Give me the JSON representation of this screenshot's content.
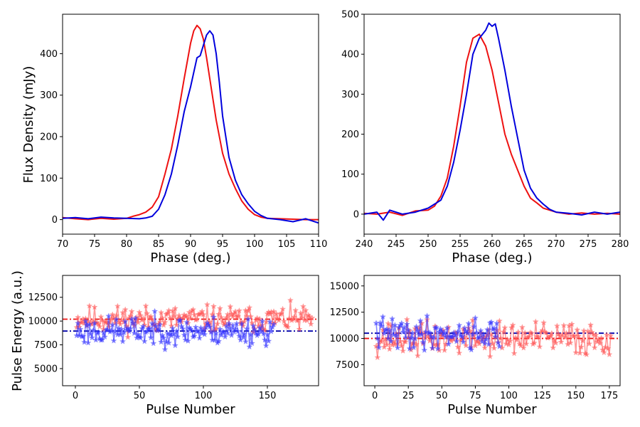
{
  "chart_data": [
    {
      "type": "line",
      "id": "profile-left",
      "xlabel": "Phase (deg.)",
      "ylabel": "Flux Density (mJy)",
      "xlim": [
        70,
        110
      ],
      "ylim": [
        -35,
        495
      ],
      "xticks": [
        70,
        75,
        80,
        85,
        90,
        95,
        100,
        105,
        110
      ],
      "yticks": [
        0,
        100,
        200,
        300,
        400
      ],
      "series": [
        {
          "name": "red",
          "color": "#ee1111",
          "x": [
            70,
            72,
            74,
            76,
            78,
            80,
            81,
            82,
            83,
            84,
            85,
            86,
            87,
            88,
            89,
            90,
            90.5,
            91,
            91.5,
            92,
            92.5,
            93,
            93.5,
            94,
            95,
            96,
            97,
            98,
            99,
            100,
            101,
            102,
            104,
            106,
            108,
            110
          ],
          "y": [
            5,
            2,
            0,
            3,
            1,
            3,
            8,
            12,
            18,
            30,
            55,
            110,
            170,
            250,
            340,
            425,
            455,
            468,
            460,
            435,
            390,
            340,
            290,
            240,
            160,
            110,
            75,
            45,
            25,
            12,
            6,
            3,
            2,
            1,
            0,
            0
          ]
        },
        {
          "name": "blue",
          "color": "#0000dd",
          "x": [
            70,
            72,
            74,
            76,
            78,
            80,
            82,
            83,
            84,
            85,
            86,
            87,
            88,
            89,
            90,
            91,
            91.5,
            92,
            92.5,
            93,
            93.5,
            94,
            94.5,
            95,
            96,
            97,
            98,
            99,
            100,
            101,
            102,
            104,
            106,
            108,
            110
          ],
          "y": [
            3,
            5,
            2,
            6,
            4,
            3,
            2,
            4,
            8,
            25,
            60,
            110,
            180,
            260,
            320,
            390,
            395,
            420,
            445,
            455,
            445,
            400,
            330,
            250,
            150,
            95,
            60,
            38,
            20,
            10,
            3,
            0,
            -5,
            2,
            -8
          ]
        }
      ]
    },
    {
      "type": "line",
      "id": "profile-right",
      "xlabel": "Phase (deg.)",
      "ylabel": "",
      "xlim": [
        240,
        280
      ],
      "ylim": [
        -50,
        500
      ],
      "xticks": [
        240,
        245,
        250,
        255,
        260,
        265,
        270,
        275,
        280
      ],
      "yticks": [
        0,
        100,
        200,
        300,
        400,
        500
      ],
      "series": [
        {
          "name": "red",
          "color": "#ee1111",
          "x": [
            240,
            242,
            244,
            246,
            248,
            250,
            251,
            252,
            253,
            254,
            255,
            256,
            257,
            258,
            259,
            260,
            261,
            262,
            263,
            264,
            265,
            266,
            267,
            268,
            270,
            272,
            274,
            276,
            278,
            280
          ],
          "y": [
            2,
            0,
            5,
            -3,
            8,
            10,
            20,
            45,
            90,
            170,
            270,
            380,
            440,
            450,
            420,
            360,
            280,
            200,
            150,
            110,
            70,
            40,
            28,
            15,
            5,
            0,
            3,
            0,
            2,
            0
          ]
        },
        {
          "name": "blue",
          "color": "#0000dd",
          "x": [
            240,
            242,
            243,
            244,
            246,
            248,
            250,
            251,
            252,
            253,
            254,
            255,
            256,
            257,
            258,
            259,
            259.5,
            260,
            260.5,
            261,
            262,
            263,
            264,
            265,
            266,
            267,
            268,
            269,
            270,
            272,
            274,
            276,
            278,
            280
          ],
          "y": [
            0,
            5,
            -15,
            10,
            0,
            5,
            15,
            25,
            35,
            70,
            130,
            210,
            300,
            400,
            440,
            460,
            478,
            470,
            476,
            440,
            360,
            270,
            190,
            110,
            65,
            40,
            25,
            12,
            5,
            2,
            -2,
            5,
            0,
            5
          ]
        }
      ]
    },
    {
      "type": "line",
      "id": "energy-left",
      "xlabel": "Pulse Number",
      "ylabel": "Pulse Energy (a.u.)",
      "xlim": [
        -10,
        190
      ],
      "ylim": [
        3200,
        14800
      ],
      "xticks": [
        0,
        50,
        100,
        150
      ],
      "yticks": [
        5000,
        7500,
        10000,
        12500
      ],
      "mean_lines": [
        {
          "name": "red-mean",
          "value": 10200,
          "color": "#ee1111"
        },
        {
          "name": "blue-mean",
          "value": 8950,
          "color": "#0000aa"
        }
      ],
      "series": [
        {
          "name": "red",
          "color": "#ff5555",
          "n_points": 185,
          "mean": 10200,
          "spread": 1300,
          "seed": 11
        },
        {
          "name": "blue",
          "color": "#3333ff",
          "n_points": 155,
          "mean": 8950,
          "spread": 1400,
          "seed": 23
        }
      ]
    },
    {
      "type": "line",
      "id": "energy-right",
      "xlabel": "Pulse Number",
      "ylabel": "",
      "xlim": [
        -8,
        183
      ],
      "ylim": [
        5500,
        16000
      ],
      "xticks": [
        0,
        25,
        50,
        75,
        100,
        125,
        150,
        175
      ],
      "yticks": [
        7500,
        10000,
        12500,
        15000
      ],
      "mean_lines": [
        {
          "name": "red-mean",
          "value": 10000,
          "color": "#ee1111"
        },
        {
          "name": "blue-mean",
          "value": 10500,
          "color": "#0000aa"
        }
      ],
      "series": [
        {
          "name": "red",
          "color": "#ff5555",
          "n_points": 176,
          "mean": 10000,
          "spread": 1500,
          "seed": 37
        },
        {
          "name": "blue",
          "color": "#3333ff",
          "n_points": 93,
          "mean": 10500,
          "spread": 1400,
          "seed": 41
        }
      ]
    }
  ]
}
